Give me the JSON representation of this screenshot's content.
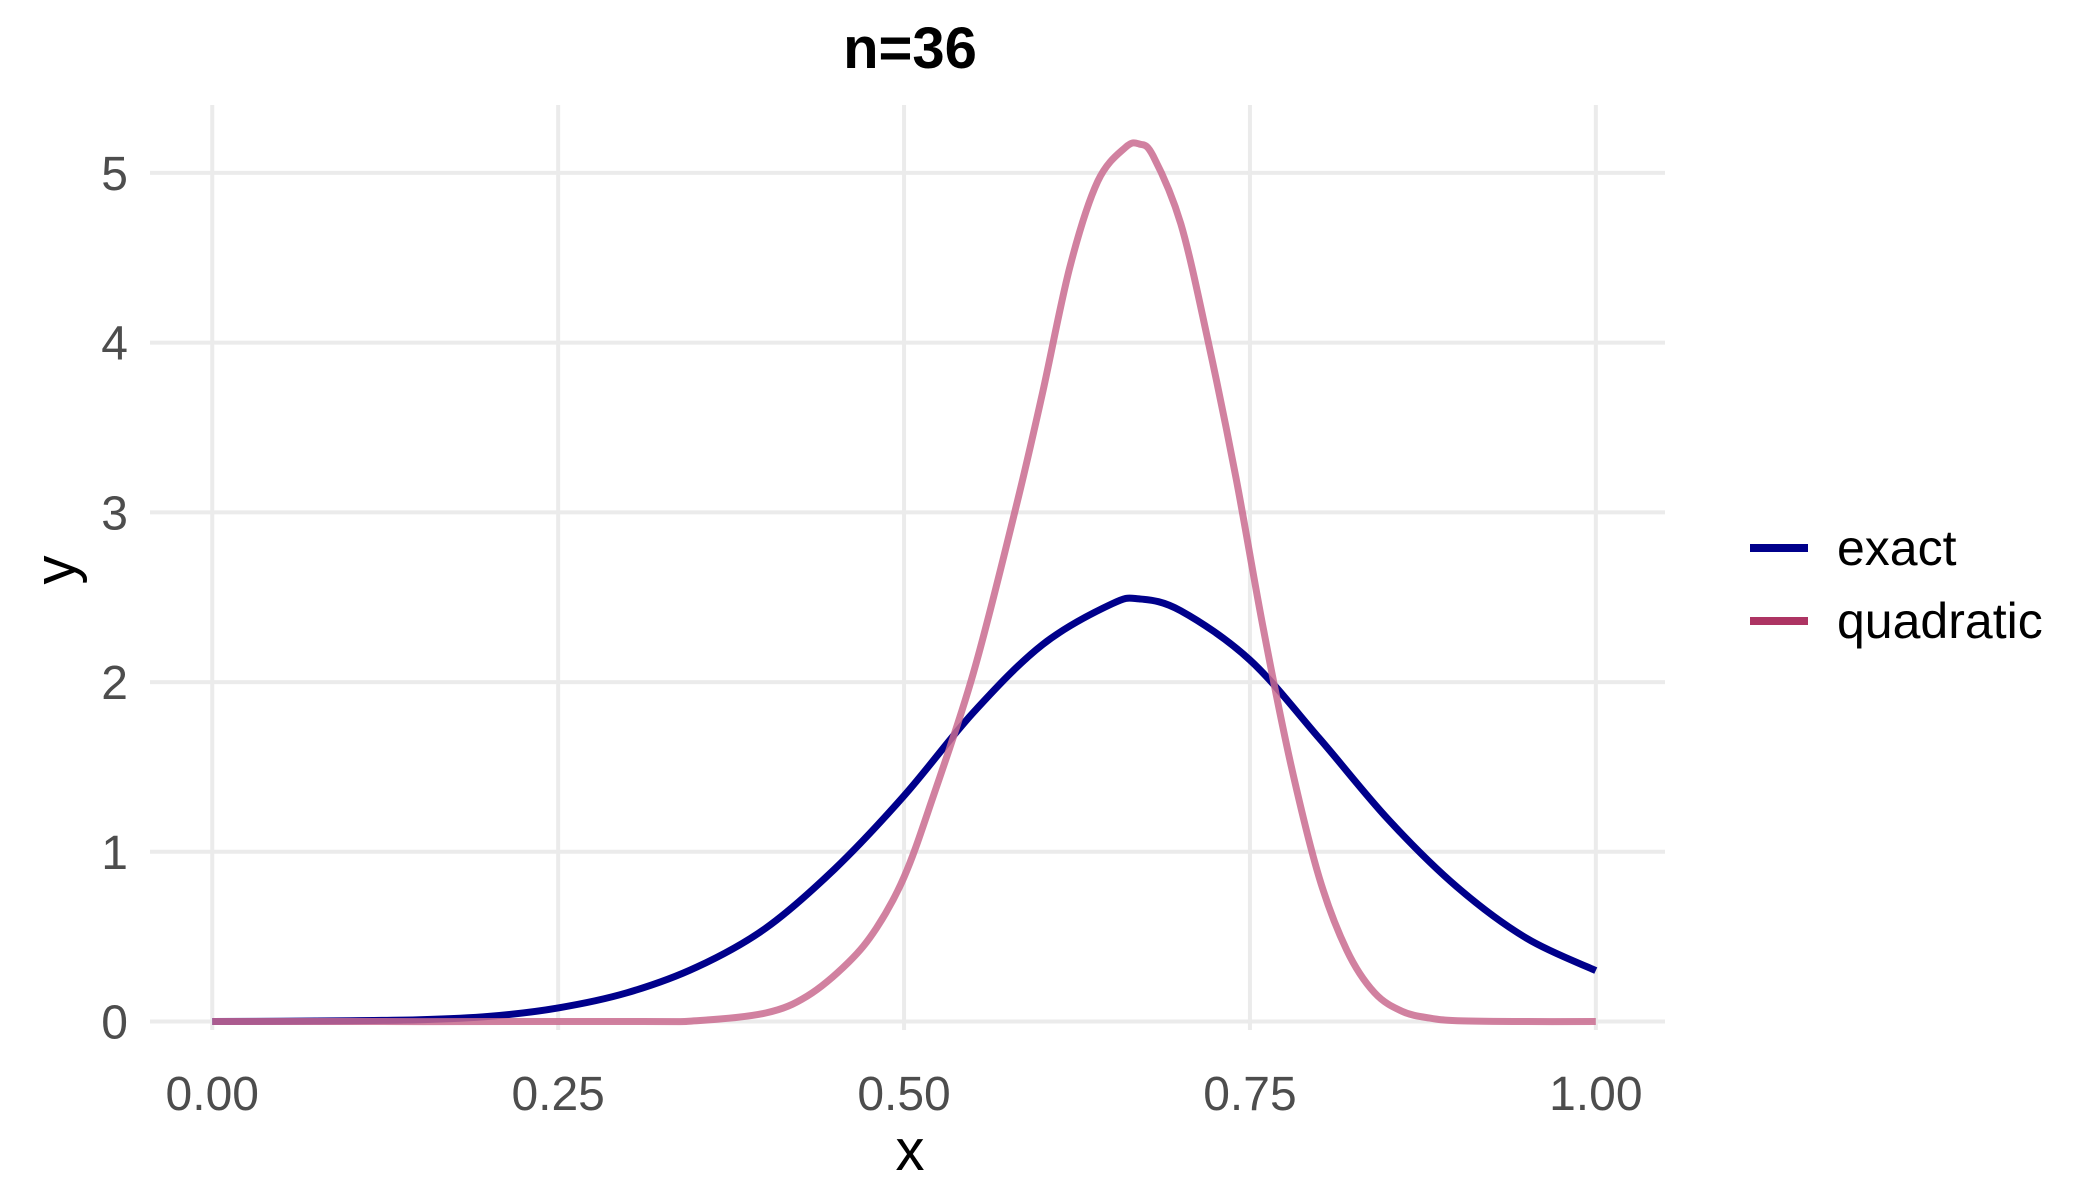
{
  "chart_data": {
    "type": "line",
    "title": "n=36",
    "xlabel": "x",
    "ylabel": "y",
    "xlim": [
      -0.045,
      1.05
    ],
    "ylim": [
      -0.05,
      5.4
    ],
    "x_ticks": [
      0,
      0.25,
      0.5,
      0.75,
      1
    ],
    "x_tick_labels": [
      "0.00",
      "0.25",
      "0.50",
      "0.75",
      "1.00"
    ],
    "y_ticks": [
      0,
      1,
      2,
      3,
      4,
      5
    ],
    "y_tick_labels": [
      "0",
      "1",
      "2",
      "3",
      "4",
      "5"
    ],
    "grid": true,
    "legend": {
      "position": "right"
    },
    "series": [
      {
        "name": "exact",
        "color": "#00008b",
        "x": [
          0,
          0.05,
          0.1,
          0.15,
          0.2,
          0.25,
          0.3,
          0.35,
          0.4,
          0.45,
          0.5,
          0.55,
          0.6,
          0.65,
          0.67,
          0.7,
          0.75,
          0.8,
          0.85,
          0.9,
          0.95,
          1.0
        ],
        "y": [
          0,
          0.002,
          0.005,
          0.01,
          0.03,
          0.08,
          0.17,
          0.32,
          0.55,
          0.9,
          1.33,
          1.82,
          2.22,
          2.46,
          2.49,
          2.42,
          2.13,
          1.67,
          1.19,
          0.79,
          0.49,
          0.3
        ]
      },
      {
        "name": "quadratic",
        "color": "#c96b8f",
        "legend_color": "#ad3463",
        "x": [
          0,
          0.3,
          0.35,
          0.4,
          0.43,
          0.46,
          0.48,
          0.5,
          0.52,
          0.55,
          0.58,
          0.6,
          0.62,
          0.64,
          0.66,
          0.67,
          0.68,
          0.7,
          0.72,
          0.74,
          0.76,
          0.78,
          0.8,
          0.82,
          0.84,
          0.86,
          0.88,
          0.9,
          0.95,
          1.0
        ],
        "y": [
          0,
          0,
          0.005,
          0.05,
          0.15,
          0.35,
          0.55,
          0.85,
          1.3,
          2.05,
          3.0,
          3.7,
          4.45,
          4.95,
          5.15,
          5.17,
          5.1,
          4.7,
          4.0,
          3.2,
          2.3,
          1.5,
          0.85,
          0.42,
          0.17,
          0.06,
          0.02,
          0.005,
          0,
          0
        ]
      }
    ]
  }
}
